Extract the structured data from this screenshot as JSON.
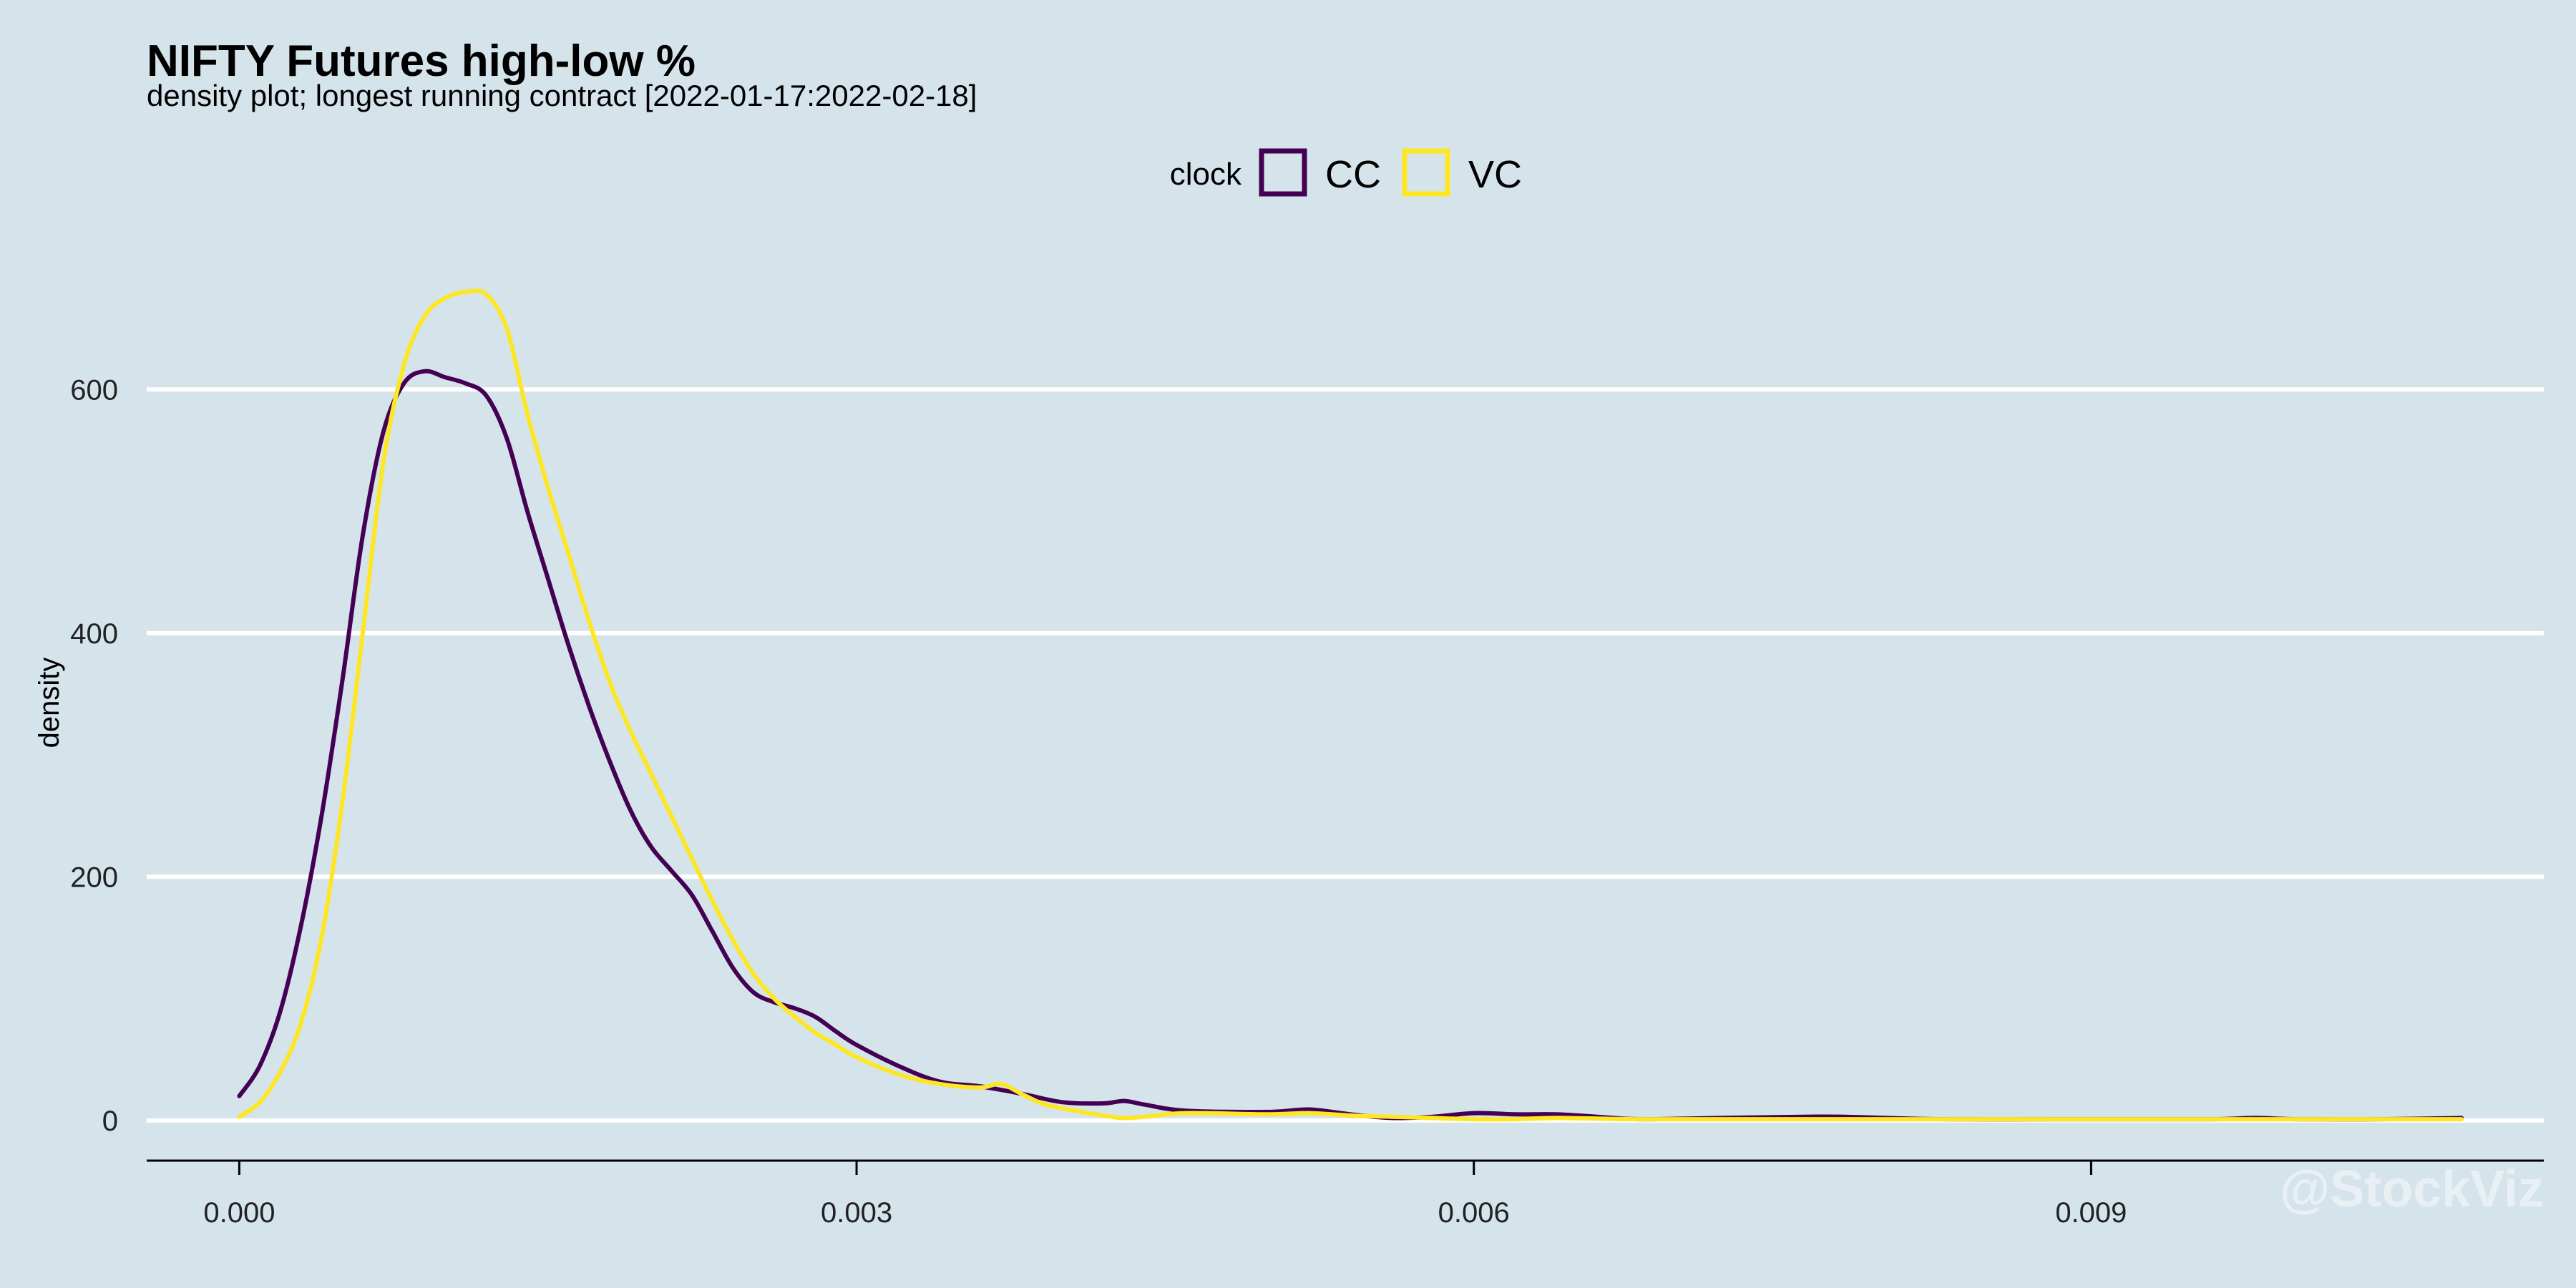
{
  "chart_data": {
    "type": "line",
    "title": "NIFTY Futures high-low %",
    "subtitle": "density plot; longest running contract [2022-01-17:2022-02-18]",
    "xlabel": "",
    "ylabel": "density",
    "xlim": [
      -0.00045,
      0.0112
    ],
    "ylim": [
      -33,
      720
    ],
    "xticks": [
      0.0,
      0.003,
      0.006,
      0.009
    ],
    "xtick_labels": [
      "0.000",
      "0.003",
      "0.006",
      "0.009"
    ],
    "yticks": [
      0,
      200,
      400,
      600
    ],
    "ytick_labels": [
      "0",
      "200",
      "400",
      "600"
    ],
    "grid": "horizontal",
    "legend": {
      "title": "clock",
      "position": "top-center",
      "entries": [
        {
          "label": "CC",
          "color": "#440154"
        },
        {
          "label": "VC",
          "color": "#fde725"
        }
      ]
    },
    "series": [
      {
        "name": "CC",
        "color": "#440154",
        "points": [
          [
            0.0,
            20
          ],
          [
            0.0001,
            45
          ],
          [
            0.0002,
            90
          ],
          [
            0.0003,
            160
          ],
          [
            0.0004,
            250
          ],
          [
            0.0005,
            360
          ],
          [
            0.0006,
            480
          ],
          [
            0.0007,
            565
          ],
          [
            0.0008,
            605
          ],
          [
            0.0009,
            615
          ],
          [
            0.001,
            610
          ],
          [
            0.0011,
            605
          ],
          [
            0.0012,
            595
          ],
          [
            0.0013,
            560
          ],
          [
            0.0014,
            500
          ],
          [
            0.0015,
            445
          ],
          [
            0.0016,
            390
          ],
          [
            0.0017,
            340
          ],
          [
            0.0018,
            295
          ],
          [
            0.0019,
            255
          ],
          [
            0.002,
            225
          ],
          [
            0.0021,
            205
          ],
          [
            0.0022,
            185
          ],
          [
            0.0023,
            155
          ],
          [
            0.0024,
            125
          ],
          [
            0.0025,
            105
          ],
          [
            0.0026,
            97
          ],
          [
            0.0027,
            92
          ],
          [
            0.0028,
            85
          ],
          [
            0.0029,
            73
          ],
          [
            0.003,
            62
          ],
          [
            0.0032,
            45
          ],
          [
            0.0034,
            32
          ],
          [
            0.0036,
            28
          ],
          [
            0.0038,
            22
          ],
          [
            0.004,
            15
          ],
          [
            0.0042,
            14
          ],
          [
            0.0043,
            16
          ],
          [
            0.0044,
            13
          ],
          [
            0.0046,
            8
          ],
          [
            0.005,
            7
          ],
          [
            0.0052,
            9
          ],
          [
            0.0054,
            5
          ],
          [
            0.0056,
            2
          ],
          [
            0.0058,
            3
          ],
          [
            0.006,
            6
          ],
          [
            0.0062,
            5
          ],
          [
            0.0064,
            5
          ],
          [
            0.0066,
            3
          ],
          [
            0.0068,
            1
          ],
          [
            0.0072,
            2
          ],
          [
            0.0076,
            3
          ],
          [
            0.0078,
            3
          ],
          [
            0.008,
            2
          ],
          [
            0.0083,
            1
          ],
          [
            0.0088,
            1
          ],
          [
            0.0092,
            1
          ],
          [
            0.0096,
            1
          ],
          [
            0.0098,
            2
          ],
          [
            0.01,
            1
          ],
          [
            0.0104,
            1
          ],
          [
            0.0108,
            2
          ]
        ]
      },
      {
        "name": "VC",
        "color": "#fde725",
        "points": [
          [
            0.0,
            3
          ],
          [
            0.0001,
            15
          ],
          [
            0.0002,
            40
          ],
          [
            0.0003,
            80
          ],
          [
            0.0004,
            150
          ],
          [
            0.0005,
            260
          ],
          [
            0.0006,
            400
          ],
          [
            0.0007,
            540
          ],
          [
            0.0008,
            620
          ],
          [
            0.0009,
            660
          ],
          [
            0.001,
            675
          ],
          [
            0.0011,
            680
          ],
          [
            0.0012,
            678
          ],
          [
            0.0013,
            650
          ],
          [
            0.0014,
            580
          ],
          [
            0.0015,
            520
          ],
          [
            0.0016,
            465
          ],
          [
            0.0017,
            410
          ],
          [
            0.0018,
            360
          ],
          [
            0.0019,
            320
          ],
          [
            0.002,
            285
          ],
          [
            0.0021,
            250
          ],
          [
            0.0022,
            215
          ],
          [
            0.0023,
            180
          ],
          [
            0.0024,
            148
          ],
          [
            0.0025,
            120
          ],
          [
            0.0026,
            100
          ],
          [
            0.0027,
            85
          ],
          [
            0.0028,
            72
          ],
          [
            0.0029,
            62
          ],
          [
            0.003,
            52
          ],
          [
            0.0032,
            38
          ],
          [
            0.0034,
            30
          ],
          [
            0.0036,
            27
          ],
          [
            0.0037,
            30
          ],
          [
            0.0038,
            22
          ],
          [
            0.0039,
            14
          ],
          [
            0.004,
            10
          ],
          [
            0.0042,
            4
          ],
          [
            0.0043,
            2
          ],
          [
            0.0044,
            3
          ],
          [
            0.0046,
            6
          ],
          [
            0.005,
            5
          ],
          [
            0.0052,
            6
          ],
          [
            0.0054,
            4
          ],
          [
            0.0056,
            3
          ],
          [
            0.0058,
            2
          ],
          [
            0.006,
            1
          ],
          [
            0.0062,
            1
          ],
          [
            0.0064,
            2
          ],
          [
            0.0068,
            1
          ],
          [
            0.0072,
            1
          ],
          [
            0.0076,
            1
          ],
          [
            0.0078,
            1
          ],
          [
            0.008,
            1
          ],
          [
            0.0084,
            1
          ],
          [
            0.0088,
            1
          ],
          [
            0.0092,
            1
          ],
          [
            0.0096,
            1
          ],
          [
            0.01,
            1
          ],
          [
            0.0104,
            1
          ],
          [
            0.0108,
            1
          ]
        ]
      }
    ],
    "watermark": "@StockViz"
  }
}
